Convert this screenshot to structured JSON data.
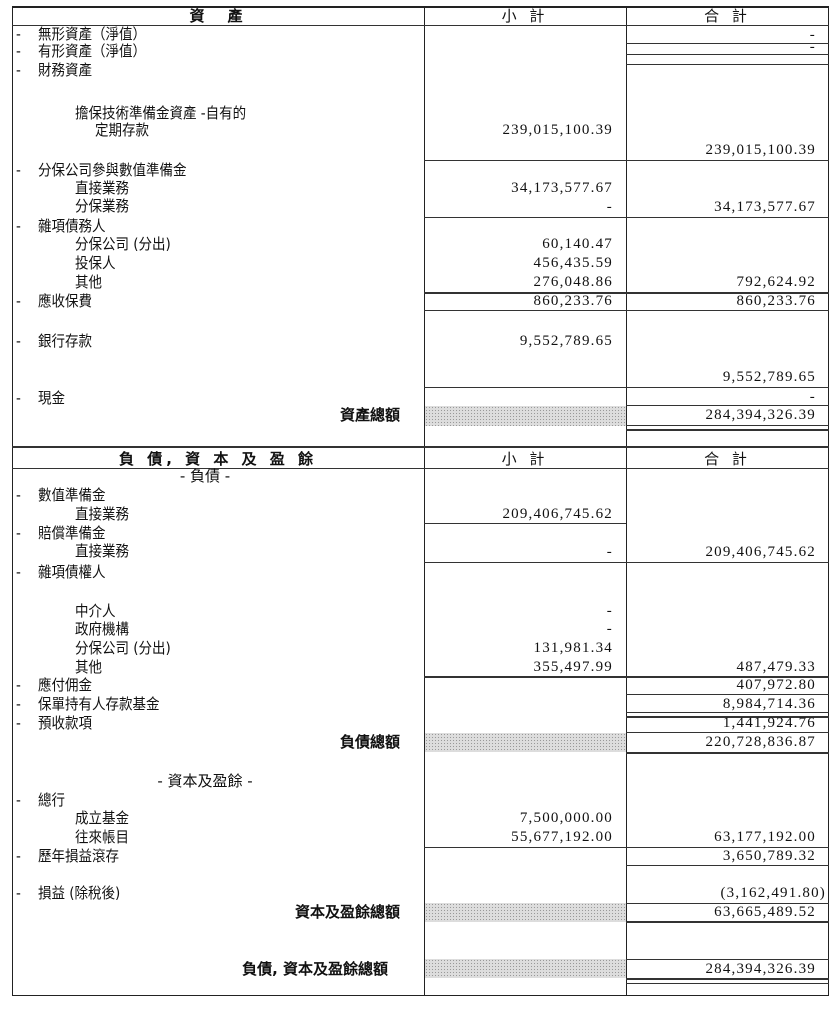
{
  "marker": "-",
  "assets": {
    "header": {
      "title": "資　產",
      "subtotal": "小 計",
      "total": "合 計"
    },
    "rows": [
      {
        "label": "無形資產（淨值）",
        "total": "-"
      },
      {
        "label": "有形資產（淨值）",
        "total": "-"
      },
      {
        "label": "財務資產"
      },
      {
        "label": "擔保技術準備金資產 -自有的"
      },
      {
        "label": "定期存款",
        "sub": "239,015,100.39",
        "total": "239,015,100.39"
      },
      {
        "label": "分保公司參與數值準備金"
      },
      {
        "label": "直接業務",
        "sub": "34,173,577.67"
      },
      {
        "label": "分保業務",
        "sub": "-",
        "total": "34,173,577.67"
      },
      {
        "label": "雜項債務人"
      },
      {
        "label": "分保公司 (分出)",
        "sub": "60,140.47"
      },
      {
        "label": "投保人",
        "sub": "456,435.59"
      },
      {
        "label": "其他",
        "sub": "276,048.86",
        "total": "792,624.92"
      },
      {
        "label": "應收保費",
        "sub": "860,233.76",
        "total": "860,233.76"
      },
      {
        "label": "銀行存款",
        "sub": "9,552,789.65",
        "total": "9,552,789.65"
      },
      {
        "label": "現金",
        "total": "-"
      }
    ],
    "total_label": "資產總額",
    "total_value": "284,394,326.39"
  },
  "liabilities": {
    "header": {
      "title": "負 債, 資 本 及 盈 餘",
      "subtotal": "小 計",
      "total": "合 計"
    },
    "section_label": "- 負債 -",
    "rows": [
      {
        "label": "數值準備金"
      },
      {
        "label": "直接業務",
        "sub": "209,406,745.62"
      },
      {
        "label": "賠償準備金"
      },
      {
        "label": "直接業務",
        "sub": "-",
        "total": "209,406,745.62"
      },
      {
        "label": "雜項債權人"
      },
      {
        "label": "中介人",
        "sub": "-"
      },
      {
        "label": "政府機構",
        "sub": "-"
      },
      {
        "label": "分保公司 (分出)",
        "sub": "131,981.34"
      },
      {
        "label": "其他",
        "sub": "355,497.99",
        "total": "487,479.33"
      },
      {
        "label": "應付佣金",
        "total": "407,972.80"
      },
      {
        "label": "保單持有人存款基金",
        "total": "8,984,714.36"
      },
      {
        "label": "預收款項",
        "total": "1,441,924.76"
      }
    ],
    "total_label": "負債總額",
    "total_value": "220,728,836.87"
  },
  "equity": {
    "section_label": "- 資本及盈餘 -",
    "rows": [
      {
        "label": "總行"
      },
      {
        "label": "成立基金",
        "sub": "7,500,000.00"
      },
      {
        "label": "往來帳目",
        "sub": "55,677,192.00",
        "total": "63,177,192.00"
      },
      {
        "label": "歷年損益滾存",
        "total": "3,650,789.32"
      },
      {
        "label": "損益 (除稅後)",
        "total": "(3,162,491.80)"
      }
    ],
    "total_label": "資本及盈餘總額",
    "total_value": "63,665,489.52"
  },
  "grand_total": {
    "label": "負債, 資本及盈餘總額",
    "value": "284,394,326.39"
  }
}
